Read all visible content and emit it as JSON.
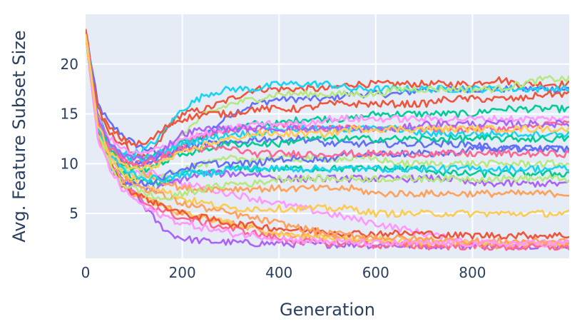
{
  "chart_data": {
    "type": "line",
    "title": "",
    "xlabel": "Generation",
    "ylabel": "Avg. Feature Subset Size",
    "xlim": [
      0,
      1000
    ],
    "ylim": [
      0.5,
      25
    ],
    "xticks": [
      0,
      200,
      400,
      600,
      800
    ],
    "yticks": [
      5,
      10,
      15,
      20
    ],
    "grid": true,
    "legend": "none",
    "background": "#e5ecf6",
    "gridcolor": "#ffffff",
    "colors": [
      "#636efa",
      "#ef553b",
      "#00cc96",
      "#ab63fa",
      "#ffa15a",
      "#19d3f3",
      "#ff6692",
      "#b6e880",
      "#ff97ff",
      "#fecb52"
    ],
    "x": [
      0,
      25,
      50,
      75,
      100,
      125,
      150,
      175,
      200,
      250,
      300,
      350,
      400,
      450,
      500,
      550,
      600,
      650,
      700,
      750,
      800,
      850,
      900,
      950,
      1000
    ],
    "series": [
      {
        "values": [
          23.5,
          16.0,
          14.0,
          13.0,
          12.0,
          11.5,
          11.0,
          11.0,
          11.5,
          13.0,
          15.0,
          16.0,
          16.5,
          16.5,
          16.5,
          17.0,
          17.0,
          17.0,
          17.5,
          17.5,
          17.5,
          17.5,
          17.5,
          17.5,
          17.5
        ]
      },
      {
        "values": [
          23.5,
          15.0,
          13.0,
          12.0,
          11.0,
          10.5,
          12.0,
          14.0,
          15.0,
          15.5,
          16.5,
          17.5,
          17.5,
          17.5,
          17.5,
          18.0,
          18.0,
          18.0,
          18.0,
          18.0,
          18.0,
          18.5,
          18.0,
          18.0,
          18.0
        ]
      },
      {
        "values": [
          23.0,
          14.0,
          12.0,
          11.0,
          10.5,
          10.5,
          11.0,
          11.5,
          12.0,
          13.0,
          13.5,
          14.0,
          14.0,
          14.5,
          14.5,
          14.5,
          15.0,
          15.0,
          15.0,
          15.0,
          15.0,
          15.5,
          15.5,
          15.5,
          15.5
        ]
      },
      {
        "values": [
          23.0,
          14.0,
          11.0,
          9.0,
          7.0,
          5.5,
          4.0,
          3.0,
          2.5,
          2.2,
          2.1,
          2.0,
          2.0,
          1.9,
          1.9,
          1.9,
          1.8,
          1.8,
          1.8,
          1.8,
          1.8,
          1.8,
          1.8,
          1.8,
          1.8
        ]
      },
      {
        "values": [
          23.0,
          13.0,
          10.0,
          8.0,
          7.0,
          6.5,
          6.0,
          5.5,
          5.0,
          4.5,
          4.0,
          3.5,
          3.0,
          2.8,
          2.5,
          2.3,
          2.2,
          2.0,
          1.9,
          1.9,
          1.8,
          1.8,
          1.8,
          1.8,
          1.8
        ]
      },
      {
        "values": [
          23.5,
          15.0,
          12.0,
          11.0,
          11.0,
          11.5,
          12.5,
          14.0,
          15.5,
          17.0,
          17.5,
          17.5,
          18.0,
          18.0,
          18.0,
          17.5,
          17.5,
          17.5,
          17.5,
          17.5,
          17.5,
          17.5,
          17.5,
          17.5,
          17.5
        ]
      },
      {
        "values": [
          23.0,
          14.5,
          12.0,
          10.5,
          10.0,
          10.0,
          10.5,
          11.0,
          12.0,
          13.0,
          13.5,
          13.5,
          14.0,
          13.5,
          13.5,
          13.5,
          13.5,
          13.5,
          13.5,
          13.5,
          13.5,
          13.5,
          13.5,
          14.0,
          14.0
        ]
      },
      {
        "values": [
          23.0,
          14.0,
          11.5,
          10.0,
          9.5,
          9.5,
          10.0,
          11.0,
          13.0,
          15.0,
          16.0,
          16.5,
          17.0,
          17.0,
          17.0,
          17.0,
          17.0,
          17.5,
          17.5,
          17.5,
          17.5,
          17.5,
          18.0,
          18.5,
          18.5
        ]
      },
      {
        "values": [
          23.0,
          13.5,
          11.0,
          9.5,
          9.0,
          9.0,
          9.0,
          8.5,
          8.0,
          7.5,
          7.0,
          6.5,
          6.0,
          5.5,
          5.0,
          4.5,
          4.0,
          3.5,
          3.0,
          2.5,
          2.3,
          2.0,
          2.0,
          2.0,
          2.0
        ]
      },
      {
        "values": [
          23.0,
          13.0,
          10.0,
          8.0,
          7.0,
          6.5,
          6.0,
          5.5,
          5.0,
          4.5,
          4.0,
          3.5,
          3.0,
          2.8,
          2.6,
          2.5,
          2.4,
          2.3,
          2.2,
          2.1,
          2.0,
          2.0,
          2.0,
          2.0,
          2.0
        ]
      },
      {
        "values": [
          23.0,
          14.0,
          11.5,
          10.5,
          10.0,
          10.0,
          10.5,
          11.0,
          11.5,
          12.0,
          12.0,
          12.5,
          12.5,
          12.5,
          12.0,
          12.0,
          12.0,
          12.0,
          12.0,
          12.0,
          12.0,
          11.5,
          11.5,
          11.5,
          11.5
        ]
      },
      {
        "values": [
          23.5,
          15.5,
          13.5,
          12.5,
          12.0,
          12.0,
          13.0,
          14.0,
          14.5,
          15.0,
          15.0,
          15.5,
          15.5,
          15.5,
          16.0,
          16.0,
          16.0,
          16.0,
          16.0,
          16.5,
          16.5,
          16.5,
          16.5,
          17.0,
          17.0
        ]
      },
      {
        "values": [
          23.0,
          14.0,
          11.0,
          9.0,
          8.5,
          8.0,
          8.0,
          8.5,
          9.0,
          9.0,
          9.5,
          9.5,
          9.5,
          9.5,
          9.5,
          9.5,
          9.5,
          9.5,
          9.5,
          9.0,
          9.0,
          9.0,
          9.0,
          9.0,
          9.0
        ]
      },
      {
        "values": [
          23.0,
          13.0,
          10.0,
          8.5,
          8.0,
          7.5,
          7.5,
          8.0,
          8.5,
          9.0,
          9.0,
          9.0,
          8.5,
          8.5,
          8.5,
          8.5,
          8.5,
          8.5,
          8.5,
          8.5,
          8.0,
          8.0,
          8.0,
          8.0,
          8.0
        ]
      },
      {
        "values": [
          23.0,
          13.5,
          11.0,
          10.0,
          9.5,
          9.0,
          8.5,
          8.0,
          7.5,
          7.5,
          7.5,
          7.5,
          7.5,
          7.5,
          7.5,
          7.5,
          7.0,
          7.0,
          7.0,
          7.0,
          7.0,
          7.0,
          7.0,
          7.0,
          7.0
        ]
      },
      {
        "values": [
          23.0,
          14.0,
          12.0,
          11.0,
          10.5,
          10.5,
          11.0,
          11.5,
          12.0,
          12.5,
          13.0,
          13.0,
          13.5,
          13.5,
          13.5,
          13.5,
          13.5,
          13.5,
          13.0,
          13.0,
          13.0,
          13.0,
          13.0,
          13.0,
          13.0
        ]
      },
      {
        "values": [
          23.0,
          13.0,
          10.0,
          8.0,
          7.0,
          6.0,
          5.5,
          5.0,
          4.5,
          4.0,
          3.5,
          3.0,
          2.5,
          2.2,
          2.0,
          2.0,
          1.8,
          1.8,
          1.7,
          1.7,
          1.7,
          1.6,
          1.6,
          1.6,
          1.6
        ]
      },
      {
        "values": [
          23.0,
          14.0,
          11.0,
          9.5,
          9.0,
          8.5,
          8.5,
          9.0,
          9.5,
          10.0,
          10.5,
          10.5,
          10.5,
          10.5,
          10.5,
          10.5,
          10.5,
          10.0,
          10.0,
          10.0,
          10.0,
          10.0,
          10.0,
          10.0,
          10.0
        ]
      },
      {
        "values": [
          23.0,
          14.5,
          12.5,
          11.5,
          11.0,
          11.0,
          11.5,
          12.0,
          12.5,
          13.0,
          13.5,
          14.0,
          14.0,
          14.0,
          14.5,
          14.5,
          14.5,
          14.5,
          14.5,
          14.5,
          14.5,
          14.5,
          14.5,
          14.5,
          14.5
        ]
      },
      {
        "values": [
          23.0,
          13.5,
          10.5,
          9.0,
          8.5,
          8.0,
          7.5,
          7.0,
          6.5,
          6.0,
          5.5,
          5.5,
          5.5,
          5.5,
          5.5,
          5.5,
          5.0,
          5.0,
          5.0,
          5.0,
          5.0,
          5.0,
          5.0,
          5.0,
          5.0
        ]
      },
      {
        "values": [
          23.0,
          13.0,
          10.0,
          8.5,
          8.0,
          8.0,
          8.5,
          9.0,
          9.5,
          10.0,
          10.0,
          10.0,
          10.5,
          10.5,
          10.5,
          11.0,
          11.0,
          11.0,
          11.0,
          11.0,
          11.5,
          11.5,
          11.5,
          11.5,
          11.5
        ]
      },
      {
        "values": [
          23.0,
          13.0,
          10.0,
          8.0,
          7.0,
          6.5,
          6.0,
          5.5,
          5.0,
          4.5,
          4.0,
          3.8,
          3.5,
          3.3,
          3.2,
          3.0,
          3.0,
          3.0,
          3.0,
          2.8,
          2.8,
          2.8,
          2.8,
          2.8,
          2.8
        ]
      },
      {
        "values": [
          23.0,
          14.0,
          11.5,
          10.0,
          9.5,
          9.5,
          10.0,
          10.5,
          11.0,
          11.5,
          12.0,
          12.0,
          12.0,
          12.5,
          12.5,
          12.5,
          12.5,
          12.5,
          12.5,
          12.5,
          12.5,
          12.5,
          12.5,
          12.5,
          12.5
        ]
      },
      {
        "values": [
          23.0,
          14.5,
          12.0,
          11.0,
          10.5,
          10.5,
          11.0,
          12.0,
          13.0,
          13.5,
          13.5,
          13.5,
          13.5,
          13.5,
          13.5,
          13.5,
          13.5,
          13.5,
          14.0,
          14.0,
          14.0,
          14.0,
          14.0,
          14.0,
          14.0
        ]
      },
      {
        "values": [
          23.0,
          13.0,
          10.0,
          8.5,
          8.0,
          7.5,
          7.0,
          6.5,
          6.0,
          5.5,
          5.0,
          4.5,
          4.0,
          3.5,
          3.0,
          2.8,
          2.6,
          2.5,
          2.4,
          2.3,
          2.2,
          2.2,
          2.2,
          2.2,
          2.2
        ]
      },
      {
        "values": [
          23.0,
          13.5,
          11.0,
          9.5,
          9.0,
          8.5,
          8.5,
          8.5,
          9.0,
          9.0,
          9.5,
          9.5,
          9.5,
          9.5,
          9.5,
          9.5,
          9.5,
          9.5,
          9.5,
          9.5,
          9.5,
          9.5,
          9.5,
          9.5,
          9.5
        ]
      },
      {
        "values": [
          23.0,
          14.0,
          11.5,
          10.5,
          10.0,
          10.0,
          10.5,
          11.0,
          11.5,
          11.5,
          11.5,
          11.0,
          11.0,
          11.0,
          11.0,
          11.0,
          11.0,
          11.0,
          11.0,
          11.0,
          11.0,
          11.0,
          11.0,
          11.0,
          11.0
        ]
      },
      {
        "values": [
          23.0,
          13.0,
          10.0,
          8.0,
          7.5,
          7.0,
          6.5,
          6.5,
          7.0,
          7.5,
          8.0,
          8.0,
          8.5,
          8.5,
          8.5,
          8.5,
          8.5,
          8.5,
          8.5,
          8.5,
          8.5,
          8.5,
          8.5,
          8.5,
          8.5
        ]
      },
      {
        "values": [
          23.0,
          12.5,
          9.5,
          7.5,
          6.5,
          5.5,
          5.0,
          4.5,
          4.0,
          3.5,
          3.0,
          2.8,
          2.5,
          2.3,
          2.2,
          2.1,
          2.0,
          2.0,
          2.0,
          2.0,
          2.0,
          2.0,
          2.0,
          2.0,
          2.0
        ]
      },
      {
        "values": [
          23.0,
          14.0,
          11.0,
          10.0,
          9.5,
          9.5,
          10.0,
          10.5,
          11.0,
          12.0,
          12.5,
          13.0,
          13.0,
          13.0,
          13.0,
          13.5,
          13.5,
          13.5,
          13.5,
          13.5,
          13.5,
          13.5,
          13.5,
          13.5,
          13.5
        ]
      }
    ]
  }
}
